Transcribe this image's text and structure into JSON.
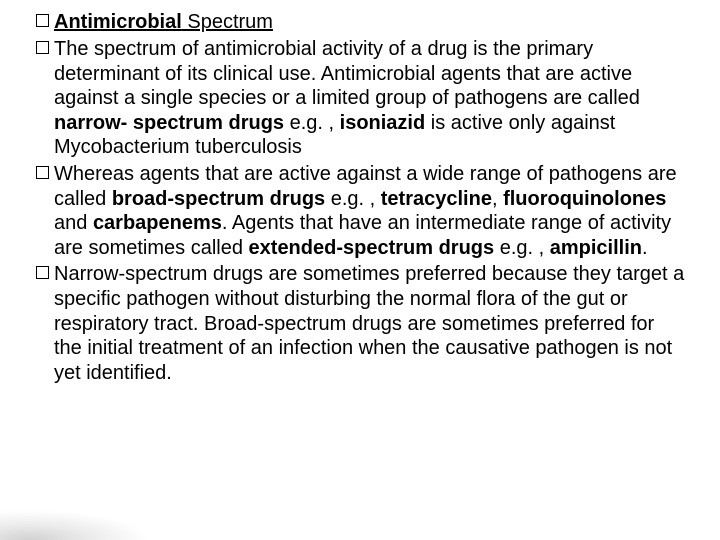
{
  "title": {
    "bold_underlined": "Antimicrobial",
    "underlined": " Spectrum"
  },
  "items": [
    {
      "runs": [
        {
          "t": "The spectrum of antimicrobial activity of a drug is the primary determinant of its clinical use. Antimicrobial agents that are active against a single species or a limited group of pathogens are called ",
          "b": false
        },
        {
          "t": "narrow- spectrum drugs",
          "b": true
        },
        {
          "t": " e.g. , ",
          "b": false
        },
        {
          "t": "isoniazid",
          "b": true
        },
        {
          "t": " is active only against Mycobacterium tuberculosis",
          "b": false
        }
      ]
    },
    {
      "runs": [
        {
          "t": "Whereas agents that are active against a wide range of pathogens are called ",
          "b": false
        },
        {
          "t": "broad-spectrum drugs",
          "b": true
        },
        {
          "t": " e.g. , ",
          "b": false
        },
        {
          "t": "tetracycline",
          "b": true
        },
        {
          "t": ", ",
          "b": false
        },
        {
          "t": "fluoroquinolones",
          "b": true
        },
        {
          "t": "  and  ",
          "b": false
        },
        {
          "t": "carbapenems",
          "b": true
        },
        {
          "t": ". Agents that have an intermediate range of activity are sometimes called ",
          "b": false
        },
        {
          "t": "extended-spectrum drugs",
          "b": true
        },
        {
          "t": " e.g. , ",
          "b": false
        },
        {
          "t": "ampicillin",
          "b": true
        },
        {
          "t": ".",
          "b": false
        }
      ]
    },
    {
      "runs": [
        {
          "t": "Narrow-spectrum drugs are sometimes preferred because they target a specific pathogen without disturbing the normal flora of the gut or respiratory tract. Broad-spectrum drugs are sometimes preferred for the initial treatment of an infection when the causative pathogen is not yet identified.",
          "b": false
        }
      ]
    }
  ],
  "style": {
    "background": "#ffffff",
    "text_color": "#000000",
    "font_family": "Arial",
    "title_fontsize": 20,
    "body_fontsize": 20,
    "line_height": 1.23,
    "bullet_box_size": 11,
    "bullet_border": "#000000",
    "slide_width": 720,
    "slide_height": 540
  }
}
